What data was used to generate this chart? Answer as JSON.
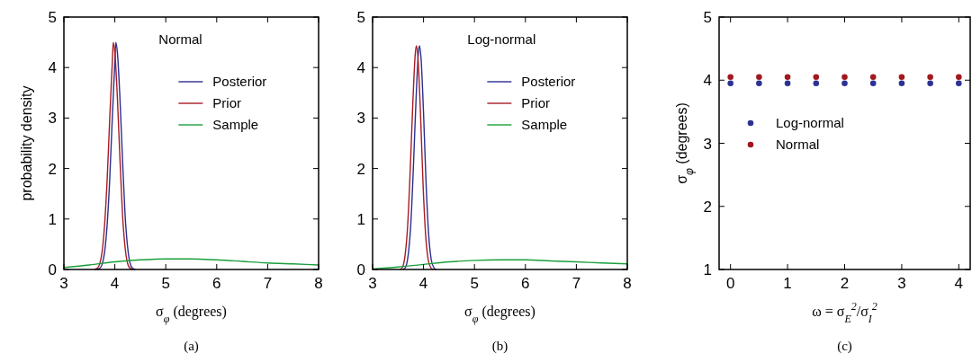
{
  "chart_data": [
    {
      "type": "line",
      "xlabel": "σ$_{φ}$ (degrees)",
      "ylabel": "probability density",
      "legend_title": "Normal",
      "legend": "top right",
      "xlim": [
        3,
        8
      ],
      "ylim": [
        0,
        5
      ],
      "xticks": [
        3,
        4,
        5,
        6,
        7,
        8
      ],
      "yticks": [
        0,
        1,
        2,
        3,
        4,
        5
      ],
      "grid": false,
      "annotations": [
        "(a)"
      ],
      "series": [
        {
          "name": "Posterior",
          "color": "#2b2f8f",
          "x": [
            3.65,
            3.7,
            3.75,
            3.8,
            3.85,
            3.9,
            3.95,
            4.0,
            4.02,
            4.05,
            4.1,
            4.15,
            4.2,
            4.25,
            4.3,
            4.35,
            4.4
          ],
          "values": [
            0,
            0.02,
            0.1,
            0.35,
            0.9,
            1.8,
            3.0,
            4.1,
            4.5,
            4.3,
            3.4,
            2.2,
            1.1,
            0.45,
            0.12,
            0.02,
            0
          ]
        },
        {
          "name": "Prior",
          "color": "#a81c24",
          "x": [
            3.6,
            3.65,
            3.7,
            3.75,
            3.8,
            3.85,
            3.9,
            3.95,
            3.97,
            4.0,
            4.05,
            4.1,
            4.15,
            4.2,
            4.25,
            4.3,
            4.35
          ],
          "values": [
            0,
            0.02,
            0.1,
            0.35,
            0.9,
            1.8,
            3.0,
            4.1,
            4.5,
            4.3,
            3.4,
            2.2,
            1.1,
            0.45,
            0.12,
            0.02,
            0
          ]
        },
        {
          "name": "Sample",
          "color": "#1a9f3a",
          "x": [
            3,
            3.5,
            4,
            4.5,
            5,
            5.5,
            6,
            6.5,
            7,
            7.5,
            8
          ],
          "values": [
            0.04,
            0.09,
            0.15,
            0.19,
            0.21,
            0.21,
            0.19,
            0.16,
            0.13,
            0.11,
            0.09
          ]
        }
      ]
    },
    {
      "type": "line",
      "xlabel": "σ$_{φ}$ (degrees)",
      "legend_title": "Log-normal",
      "legend": "top right",
      "xlim": [
        3,
        8
      ],
      "ylim": [
        0,
        5
      ],
      "xticks": [
        3,
        4,
        5,
        6,
        7,
        8
      ],
      "yticks": [
        0,
        1,
        2,
        3,
        4,
        5
      ],
      "grid": false,
      "annotations": [
        "(b)"
      ],
      "series": [
        {
          "name": "Posterior",
          "color": "#2b2f8f",
          "x": [
            3.6,
            3.65,
            3.7,
            3.75,
            3.8,
            3.85,
            3.9,
            3.92,
            3.95,
            4.0,
            4.05,
            4.1,
            4.15,
            4.2,
            4.25
          ],
          "values": [
            0,
            0.05,
            0.3,
            0.9,
            2.0,
            3.3,
            4.3,
            4.43,
            4.2,
            3.1,
            1.7,
            0.7,
            0.2,
            0.04,
            0
          ]
        },
        {
          "name": "Prior",
          "color": "#a81c24",
          "x": [
            3.54,
            3.59,
            3.64,
            3.69,
            3.74,
            3.79,
            3.84,
            3.86,
            3.89,
            3.94,
            3.99,
            4.04,
            4.09,
            4.14,
            4.19
          ],
          "values": [
            0,
            0.05,
            0.3,
            0.9,
            2.0,
            3.3,
            4.3,
            4.43,
            4.2,
            3.1,
            1.7,
            0.7,
            0.2,
            0.04,
            0
          ]
        },
        {
          "name": "Sample",
          "color": "#1a9f3a",
          "x": [
            3,
            3.5,
            4,
            4.5,
            5,
            5.5,
            6,
            6.5,
            7,
            7.5,
            8
          ],
          "values": [
            0.01,
            0.05,
            0.1,
            0.15,
            0.18,
            0.19,
            0.19,
            0.17,
            0.15,
            0.13,
            0.11
          ]
        }
      ]
    },
    {
      "type": "scatter",
      "xlabel": "ω = σ$_{E}$$^{2}$/σ$_{I}$$^{2}$",
      "ylabel": "σ$_{φ}$ (degrees)",
      "legend": "left",
      "marker": "circle",
      "xlim": [
        -0.2,
        4.2
      ],
      "ylim": [
        1,
        5
      ],
      "xticks": [
        0,
        1,
        2,
        3,
        4
      ],
      "yticks": [
        1,
        2,
        3,
        4,
        5
      ],
      "grid": false,
      "annotations": [
        "(c)"
      ],
      "x": [
        0,
        0.5,
        1,
        1.5,
        2,
        2.5,
        3,
        3.5,
        4
      ],
      "series": [
        {
          "name": "Log-normal",
          "color": "#2e3192",
          "values": [
            3.95,
            3.95,
            3.95,
            3.95,
            3.95,
            3.95,
            3.95,
            3.95,
            3.95
          ]
        },
        {
          "name": "Normal",
          "color": "#a0191e",
          "values": [
            4.05,
            4.05,
            4.05,
            4.05,
            4.05,
            4.05,
            4.05,
            4.05,
            4.05
          ]
        }
      ]
    }
  ]
}
